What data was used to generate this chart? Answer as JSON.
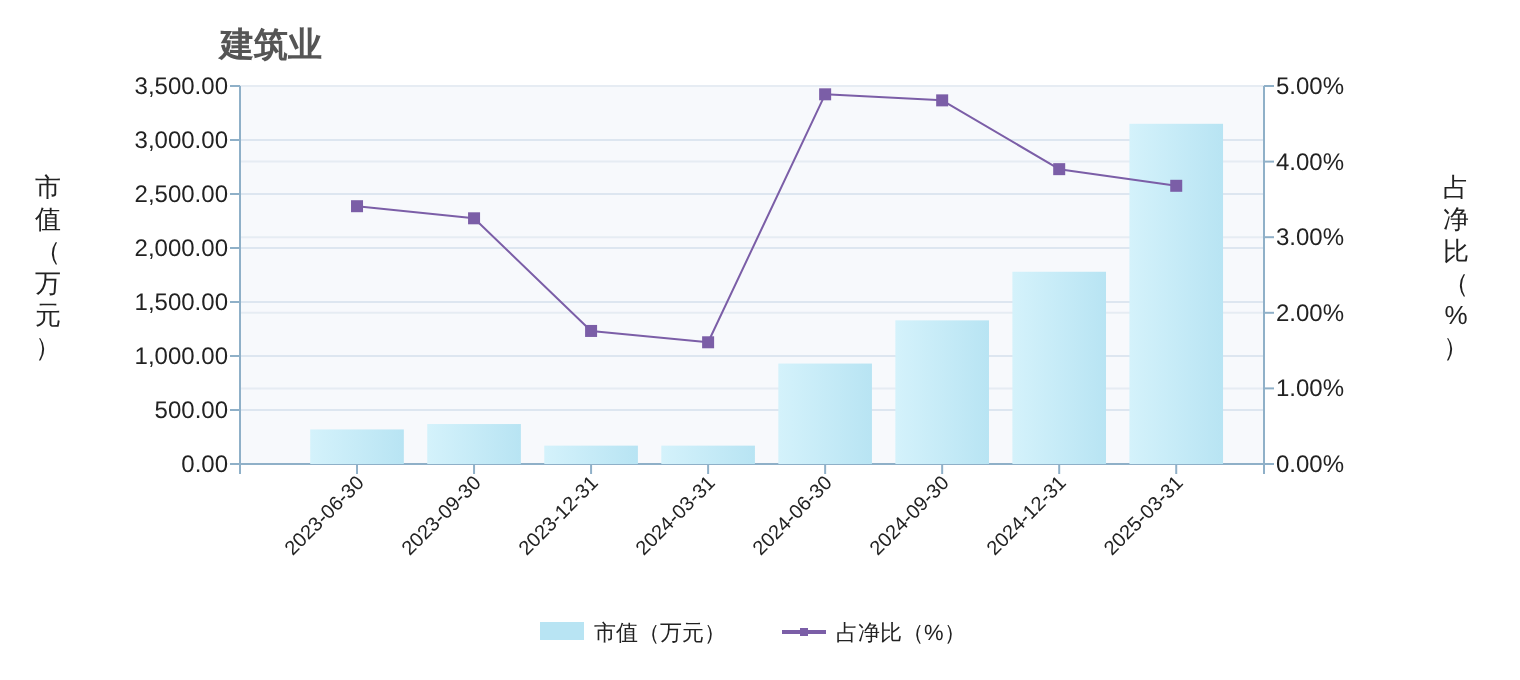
{
  "chart_data": {
    "type": "bar",
    "title": "建筑业",
    "ylabel": "市值（万元）",
    "y2label": "占净比（%）",
    "categories": [
      "2023-06-30",
      "2023-09-30",
      "2023-12-31",
      "2024-03-31",
      "2024-06-30",
      "2024-09-30",
      "2024-12-31",
      "2025-03-31"
    ],
    "series": [
      {
        "name": "市值（万元）",
        "color": "#b8e4f3",
        "values": [
          320,
          370,
          170,
          170,
          930,
          1330,
          1780,
          3150
        ]
      },
      {
        "name": "占净比（%）",
        "type": "line",
        "axis": "y2",
        "color": "#7b5ea7",
        "marker": "square",
        "values": [
          3.41,
          3.25,
          1.76,
          1.61,
          4.89,
          4.81,
          3.9,
          3.68
        ]
      }
    ],
    "ylim": [
      0,
      3500
    ],
    "yticks": [
      {
        "value": 0,
        "label": "0.00"
      },
      {
        "value": 500,
        "label": "500.00"
      },
      {
        "value": 1000,
        "label": "1,000.00"
      },
      {
        "value": 1500,
        "label": "1,500.00"
      },
      {
        "value": 2000,
        "label": "2,000.00"
      },
      {
        "value": 2500,
        "label": "2,500.00"
      },
      {
        "value": 3000,
        "label": "3,000.00"
      },
      {
        "value": 3500,
        "label": "3,500.00"
      }
    ],
    "y2lim": [
      0,
      5
    ],
    "y2ticks": [
      {
        "value": 0,
        "label": "0.00%"
      },
      {
        "value": 1,
        "label": "1.00%"
      },
      {
        "value": 2,
        "label": "2.00%"
      },
      {
        "value": 3,
        "label": "3.00%"
      },
      {
        "value": 4,
        "label": "4.00%"
      },
      {
        "value": 5,
        "label": "5.00%"
      }
    ],
    "grid": "y",
    "legend": "bottom"
  }
}
